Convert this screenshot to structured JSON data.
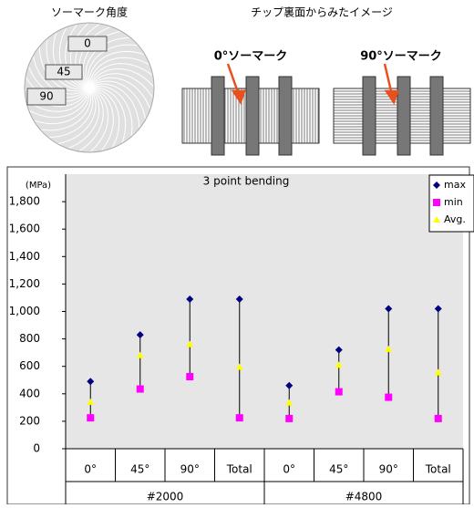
{
  "diagram": {
    "title_left": "ソーマーク角度",
    "title_right": "チップ裏面からみたイメージ",
    "angle_labels": [
      "0",
      "45",
      "90"
    ],
    "chip_labels": [
      "0°ソーマーク",
      "90°ソーマーク"
    ]
  },
  "chart_data": {
    "type": "hilo",
    "title": "3 point bending",
    "unit": "(MPa)",
    "categories": [
      "0°",
      "45°",
      "90°",
      "Total",
      "0°",
      "45°",
      "90°",
      "Total"
    ],
    "groups": [
      "#2000",
      "#4800"
    ],
    "series": [
      {
        "name": "max",
        "color": "#000080",
        "marker": "diamond",
        "values": [
          490,
          830,
          1090,
          1090,
          460,
          720,
          1020,
          1020
        ]
      },
      {
        "name": "min",
        "color": "#ff00ff",
        "marker": "square",
        "values": [
          225,
          435,
          525,
          225,
          220,
          415,
          375,
          220
        ]
      },
      {
        "name": "Avg.",
        "color": "#ffff00",
        "marker": "triangle",
        "values": [
          340,
          680,
          760,
          595,
          335,
          610,
          725,
          555
        ]
      }
    ],
    "ylim": [
      0,
      2000
    ],
    "yticks": [
      0,
      200,
      400,
      600,
      800,
      {
        "value": 1000,
        "label": "1,000"
      },
      {
        "value": 1200,
        "label": "1,200"
      },
      {
        "value": 1400,
        "label": "1,400"
      },
      {
        "value": 1600,
        "label": "1,600"
      },
      {
        "value": 1800,
        "label": "1,800"
      }
    ],
    "grid": false,
    "legend": "top-right"
  }
}
